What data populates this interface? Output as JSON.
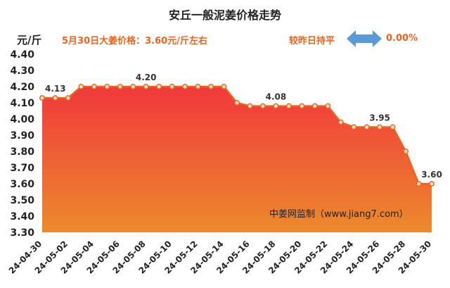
{
  "title": "安丘一般泥姜价格走势",
  "unit_label": "元/斤",
  "today_price_text": "5月30日大姜价格：3.60元/斤左右",
  "change": {
    "label": "较昨日持平",
    "value": "0.00%",
    "arrow_icon": "double-arrow-icon",
    "arrow_color": "#5b9bd5"
  },
  "watermark": "中姜网监制（www.jiang7.com）",
  "colors": {
    "accent": "#e8641e",
    "line": "#e8641e",
    "fill_top": "#f1383c",
    "fill_bottom": "#ec8a2c"
  },
  "chart_data": {
    "type": "area",
    "title": "安丘一般泥姜价格走势",
    "ylabel": "元/斤",
    "ylim": [
      3.3,
      4.4
    ],
    "yticks": [
      "4.40",
      "4.30",
      "4.20",
      "4.10",
      "4.00",
      "3.90",
      "3.80",
      "3.70",
      "3.60",
      "3.50",
      "3.40",
      "3.30"
    ],
    "x_tick_labels": [
      "24-04-30",
      "24-05-02",
      "24-05-04",
      "24-05-06",
      "24-05-08",
      "24-05-10",
      "24-05-12",
      "24-05-14",
      "24-05-16",
      "24-05-18",
      "24-05-20",
      "24-05-22",
      "24-05-24",
      "24-05-26",
      "24-05-28",
      "24-05-30"
    ],
    "x": [
      "24-04-30",
      "24-05-01",
      "24-05-02",
      "24-05-03",
      "24-05-04",
      "24-05-05",
      "24-05-06",
      "24-05-07",
      "24-05-08",
      "24-05-09",
      "24-05-10",
      "24-05-11",
      "24-05-12",
      "24-05-13",
      "24-05-14",
      "24-05-15",
      "24-05-16",
      "24-05-17",
      "24-05-18",
      "24-05-19",
      "24-05-20",
      "24-05-21",
      "24-05-22",
      "24-05-23",
      "24-05-24",
      "24-05-25",
      "24-05-26",
      "24-05-27",
      "24-05-28",
      "24-05-29",
      "24-05-30"
    ],
    "values": [
      4.13,
      4.13,
      4.13,
      4.2,
      4.2,
      4.2,
      4.2,
      4.2,
      4.2,
      4.2,
      4.2,
      4.2,
      4.2,
      4.2,
      4.2,
      4.1,
      4.08,
      4.08,
      4.08,
      4.08,
      4.08,
      4.08,
      4.08,
      3.98,
      3.95,
      3.95,
      3.95,
      3.95,
      3.8,
      3.6,
      3.6
    ],
    "data_labels": [
      {
        "index": 0,
        "text": "4.13"
      },
      {
        "index": 8,
        "text": "4.20"
      },
      {
        "index": 18,
        "text": "4.08"
      },
      {
        "index": 26,
        "text": "3.95"
      },
      {
        "index": 30,
        "text": "3.60"
      }
    ],
    "grid": false,
    "legend": "none"
  }
}
